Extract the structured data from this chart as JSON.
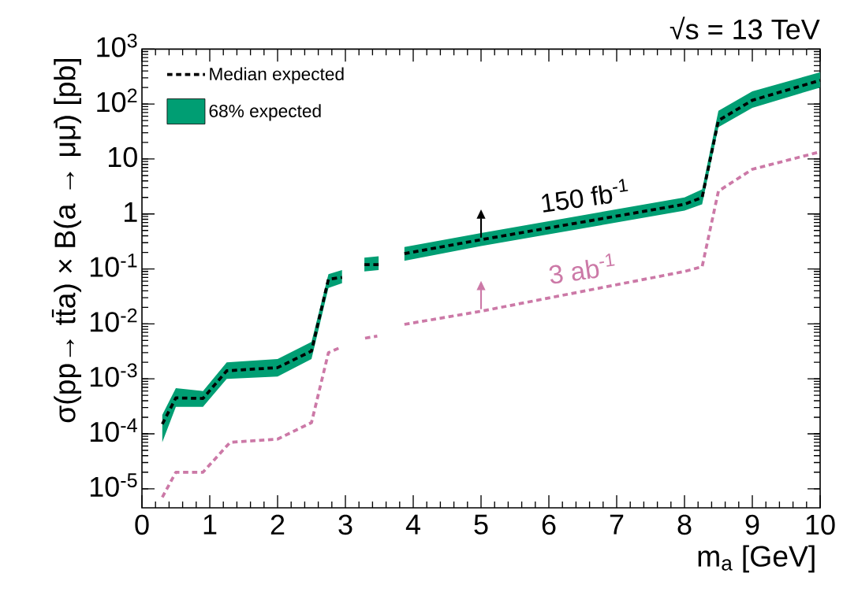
{
  "chart_data": {
    "type": "line",
    "title": "√s = 13 TeV",
    "xlabel": "m$_{a}$ [GeV]",
    "ylabel": "σ(pp→ tt̄a) × B(a → μμ̄) [pb]",
    "xlim": [
      0,
      10
    ],
    "xticks": [
      0,
      1,
      2,
      3,
      4,
      5,
      6,
      7,
      8,
      9,
      10
    ],
    "ylim": [
      4.5e-06,
      1000
    ],
    "yticks": [
      {
        "value": 1e-05,
        "label": "10$^{-5}$"
      },
      {
        "value": 0.0001,
        "label": "10$^{-4}$"
      },
      {
        "value": 0.001,
        "label": "10$^{-3}$"
      },
      {
        "value": 0.01,
        "label": "10$^{-2}$"
      },
      {
        "value": 0.1,
        "label": "10$^{-1}$"
      },
      1,
      10,
      {
        "value": 100,
        "label": "10$^{2}$"
      },
      {
        "value": 1000,
        "label": "10$^{3}$"
      }
    ],
    "log": "y",
    "grid": false,
    "legend": "top left",
    "marker": "none",
    "series": [
      {
        "name": "Median expected",
        "color": "#000000",
        "line_style": "dashed",
        "x": [
          0.3,
          0.5,
          0.9,
          1.25,
          2,
          2.5,
          2.75,
          2.95,
          3.1,
          3.28,
          3.49,
          3.7,
          3.87,
          5,
          8,
          8.26,
          8.5,
          9,
          10
        ],
        "values": [
          0.00015,
          0.00045,
          0.00044,
          0.0014,
          0.0016,
          0.0032,
          0.065,
          0.07,
          null,
          0.12,
          0.12,
          null,
          0.19,
          0.34,
          1.5,
          2.0,
          50,
          117,
          270
        ],
        "lower": [
          7e-05,
          0.00031,
          0.00031,
          0.001,
          0.0011,
          0.0023,
          0.045,
          0.055,
          null,
          0.09,
          0.095,
          null,
          0.14,
          0.26,
          1.15,
          1.5,
          38,
          85,
          200
        ],
        "upper": [
          0.00022,
          0.00068,
          0.0006,
          0.002,
          0.0023,
          0.0047,
          0.08,
          0.095,
          null,
          0.16,
          0.17,
          null,
          0.25,
          0.45,
          2.0,
          2.8,
          75,
          170,
          380
        ]
      },
      {
        "type": "area",
        "name": "68% expected",
        "color": "#009e73",
        "values": [
          null,
          null,
          null,
          null,
          null,
          null,
          null,
          null,
          null,
          null,
          null,
          null,
          null,
          null,
          null,
          null,
          null,
          null,
          null
        ]
      },
      {
        "color": "#cc79a7",
        "line_style": "dashed",
        "x": [
          0.3,
          0.5,
          0.9,
          1.3,
          2,
          2.5,
          2.75,
          2.9,
          3.1,
          3.29,
          3.47,
          3.7,
          3.87,
          5,
          8,
          8.26,
          8.5,
          9,
          10
        ],
        "values": [
          7e-06,
          2e-05,
          2e-05,
          7e-05,
          8e-05,
          0.00016,
          0.003,
          0.0036,
          null,
          0.0055,
          0.006,
          null,
          0.0098,
          0.017,
          0.09,
          0.11,
          2.6,
          6.5,
          13.5
        ]
      }
    ],
    "annotations": [
      {
        "text": "150 fb$^{-1}$",
        "x": 5,
        "y": 0.34
      },
      {
        "text": "3 ab$^{-1}$",
        "x": 5,
        "y": 0.017
      }
    ]
  }
}
